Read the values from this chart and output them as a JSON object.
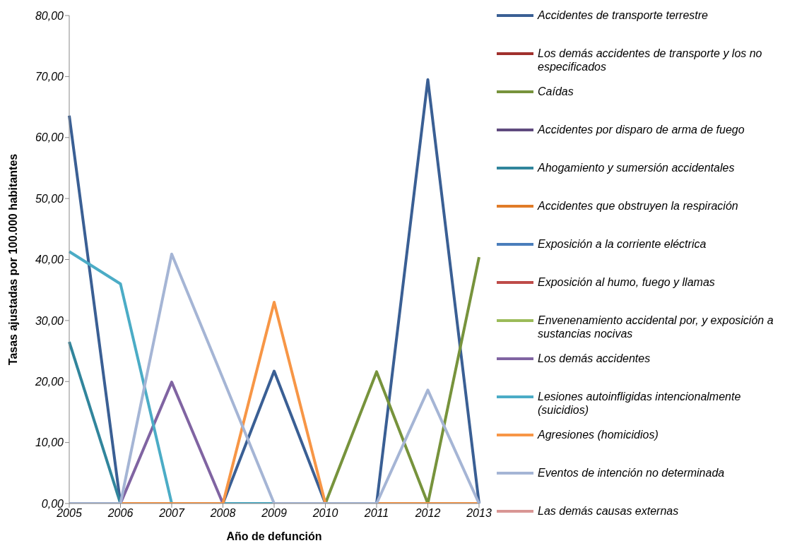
{
  "chart_data": {
    "type": "line",
    "xlabel": "Año de defunción",
    "ylabel": "Tasas ajustadas por 100.000 habitantes",
    "categories": [
      "2005",
      "2006",
      "2007",
      "2008",
      "2009",
      "2010",
      "2011",
      "2012",
      "2013"
    ],
    "ylim": [
      0,
      80
    ],
    "yticks": [
      {
        "value": 0,
        "label": "0,00"
      },
      {
        "value": 10,
        "label": "10,00"
      },
      {
        "value": 20,
        "label": "20,00"
      },
      {
        "value": 30,
        "label": "30,00"
      },
      {
        "value": 40,
        "label": "40,00"
      },
      {
        "value": 50,
        "label": "50,00"
      },
      {
        "value": 60,
        "label": "60,00"
      },
      {
        "value": 70,
        "label": "70,00"
      },
      {
        "value": 80,
        "label": "80,00"
      }
    ],
    "grid": false,
    "legend": "right",
    "marker": "none",
    "line_style": "solid",
    "series": [
      {
        "name": "Accidentes de transporte terrestre",
        "color": "#3a5f94",
        "values": [
          63.6,
          0,
          0,
          0,
          21.7,
          0,
          0,
          69.5,
          0
        ]
      },
      {
        "name": "Los demás accidentes de transporte y los no especificados",
        "color": "#a0302d",
        "values": [
          null,
          null,
          null,
          null,
          null,
          null,
          null,
          null,
          null
        ]
      },
      {
        "name": "Caídas",
        "color": "#77933c",
        "values": [
          null,
          null,
          null,
          null,
          null,
          0,
          21.6,
          0,
          40.4
        ]
      },
      {
        "name": "Accidentes por disparo de arma de fuego",
        "color": "#5f4a7e",
        "values": [
          null,
          null,
          null,
          null,
          null,
          null,
          null,
          null,
          null
        ]
      },
      {
        "name": "Ahogamiento y sumersión accidentales",
        "color": "#31859c",
        "values": [
          26.5,
          0,
          null,
          null,
          null,
          null,
          null,
          null,
          null
        ]
      },
      {
        "name": "Accidentes que obstruyen la respiración",
        "color": "#e07b28",
        "values": [
          null,
          null,
          null,
          null,
          null,
          null,
          null,
          null,
          null
        ]
      },
      {
        "name": "Exposición a la corriente eléctrica",
        "color": "#4a7ebb",
        "values": [
          null,
          null,
          null,
          null,
          null,
          null,
          null,
          null,
          null
        ]
      },
      {
        "name": "Exposición al humo, fuego y llamas",
        "color": "#be4b48",
        "values": [
          null,
          null,
          null,
          null,
          null,
          null,
          null,
          null,
          null
        ]
      },
      {
        "name": "Envenenamiento accidental por, y exposición a sustancias nocivas",
        "color": "#9bbb59",
        "values": [
          null,
          null,
          null,
          null,
          null,
          null,
          null,
          null,
          null
        ]
      },
      {
        "name": "Los demás accidentes",
        "color": "#8064a2",
        "values": [
          null,
          0,
          19.9,
          0,
          null,
          null,
          null,
          null,
          null
        ]
      },
      {
        "name": "Lesiones autoinfligidas intencionalmente (suicidios)",
        "color": "#4bacc6",
        "values": [
          41.3,
          36,
          0,
          0,
          0,
          null,
          null,
          null,
          null
        ]
      },
      {
        "name": "Agresiones (homicidios)",
        "color": "#f79646",
        "values": [
          null,
          0,
          0,
          0,
          33,
          0,
          0,
          0,
          0
        ]
      },
      {
        "name": "Eventos de intención no determinada",
        "color": "#a5b5d5",
        "values": [
          0,
          0,
          40.9,
          20.5,
          0,
          0,
          0,
          18.6,
          0
        ]
      },
      {
        "name": "Las demás causas externas",
        "color": "#d99694",
        "values": [
          null,
          null,
          null,
          null,
          null,
          null,
          null,
          null,
          null
        ]
      }
    ]
  }
}
